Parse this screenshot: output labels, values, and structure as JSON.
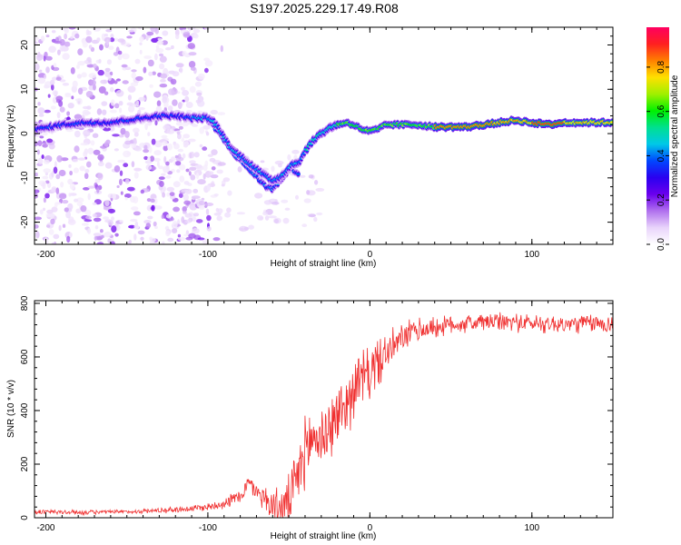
{
  "chart_data": [
    {
      "type": "heatmap",
      "title": "S197.2025.229.17.49.R08",
      "xlabel": "Height of straight line (km)",
      "ylabel": "Frequency (Hz)",
      "xlim": [
        -207,
        150
      ],
      "ylim": [
        -25,
        24
      ],
      "xticks": [
        -200,
        -100,
        0,
        100
      ],
      "yticks": [
        -20,
        -10,
        0,
        10,
        20
      ],
      "colorbar": {
        "label": "Normalized spectral amplitude",
        "range": [
          0.0,
          0.98
        ],
        "ticks": [
          0.0,
          0.2,
          0.4,
          0.6,
          0.8
        ],
        "colormap": [
          "#ffffff",
          "#e9d4fb",
          "#b070ee",
          "#6a00ee",
          "#2a00f0",
          "#0048ff",
          "#00c8e8",
          "#00e090",
          "#00f000",
          "#a0f000",
          "#ffe000",
          "#ff8000",
          "#ff2020",
          "#ff0060"
        ]
      },
      "ridge": {
        "x": [
          -205,
          -190,
          -175,
          -160,
          -150,
          -140,
          -130,
          -120,
          -110,
          -100,
          -96,
          -92,
          -88,
          -84,
          -80,
          -75,
          -70,
          -65,
          -60,
          -56,
          -52,
          -48,
          -44,
          -42,
          -40,
          -36,
          -32,
          -28,
          -24,
          -20,
          -15,
          -10,
          -5,
          0,
          5,
          10,
          20,
          30,
          40,
          50,
          60,
          70,
          80,
          90,
          100,
          110,
          120,
          130,
          140,
          150
        ],
        "y": [
          1.0,
          2.0,
          2.5,
          2.5,
          3.0,
          3.5,
          4.0,
          4.0,
          3.5,
          3.5,
          2.5,
          0.5,
          -2.0,
          -4.0,
          -5.0,
          -6.5,
          -8.0,
          -9.5,
          -10.5,
          -10.0,
          -8.5,
          -7.0,
          -6.5,
          -5.5,
          -4.0,
          -2.0,
          -0.5,
          0.5,
          1.5,
          2.0,
          2.5,
          2.0,
          1.0,
          0.5,
          1.0,
          2.0,
          2.0,
          2.0,
          1.5,
          1.5,
          1.5,
          2.0,
          2.5,
          3.0,
          2.5,
          2.0,
          2.5,
          2.5,
          2.5,
          2.5
        ]
      },
      "ridge2": {
        "x": [
          -100,
          -96,
          -92,
          -88,
          -84,
          -80,
          -76,
          -72,
          -68,
          -64,
          -60,
          -56,
          -52,
          -48,
          -44,
          -42
        ],
        "y": [
          3.0,
          1.5,
          -0.5,
          -2.5,
          -4.5,
          -6.0,
          -7.5,
          -9.0,
          -10.5,
          -12.0,
          -12.5,
          -11.0,
          -9.0,
          -8.0,
          -9.0,
          -13.0
        ]
      }
    },
    {
      "type": "line",
      "xlabel": "Height of straight line (km)",
      "ylabel": "SNR (10 * v/v)",
      "xlim": [
        -207,
        150
      ],
      "ylim": [
        0,
        810
      ],
      "xticks": [
        -200,
        -100,
        0,
        100
      ],
      "yticks": [
        0,
        200,
        400,
        600,
        800
      ],
      "color": "#f03030",
      "trend": {
        "x": [
          -207,
          -180,
          -150,
          -120,
          -100,
          -90,
          -80,
          -75,
          -70,
          -65,
          -60,
          -55,
          -50,
          -45,
          -40,
          -35,
          -30,
          -25,
          -20,
          -15,
          -10,
          -5,
          0,
          5,
          10,
          15,
          20,
          25,
          30,
          40,
          50,
          60,
          70,
          80,
          90,
          100,
          110,
          120,
          130,
          140,
          150
        ],
        "y": [
          22,
          20,
          22,
          30,
          40,
          55,
          80,
          130,
          100,
          75,
          45,
          30,
          60,
          140,
          250,
          300,
          300,
          330,
          380,
          420,
          480,
          520,
          540,
          580,
          610,
          640,
          670,
          690,
          700,
          710,
          720,
          725,
          730,
          730,
          730,
          725,
          725,
          720,
          725,
          725,
          720
        ]
      },
      "noise": {
        "x": [
          -207,
          -150,
          -100,
          -70,
          -40,
          -20,
          0,
          20,
          50,
          100,
          150
        ],
        "y": [
          18,
          12,
          25,
          60,
          220,
          200,
          180,
          90,
          60,
          60,
          60
        ]
      }
    }
  ]
}
